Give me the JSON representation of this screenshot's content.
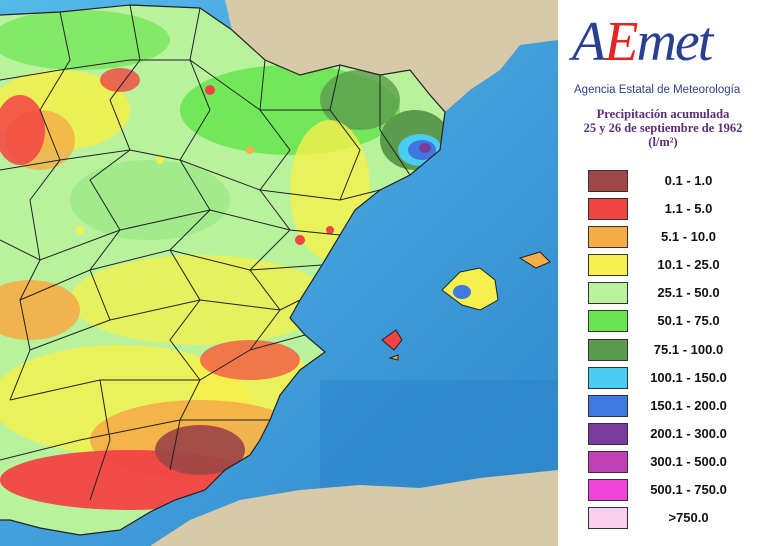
{
  "logo": {
    "name_parts": [
      "A",
      "E",
      "met"
    ],
    "agency": "Agencia Estatal de Meteorología"
  },
  "title": {
    "line1": "Precipitación acumulada",
    "line2": "25 y 26 de septiembre de 1962",
    "unit": "(l/m²)"
  },
  "colors": {
    "sea": "#3fa6df",
    "sea_deep": "#2f86c9",
    "land_foreign": "#d8c9a8"
  },
  "legend": [
    {
      "label": "0.1 - 1.0",
      "color": "#a04848"
    },
    {
      "label": "1.1 - 5.0",
      "color": "#f24343"
    },
    {
      "label": "5.1 - 10.0",
      "color": "#f5ad47"
    },
    {
      "label": "10.1 - 25.0",
      "color": "#f5f04b"
    },
    {
      "label": "25.1 - 50.0",
      "color": "#b8f29c"
    },
    {
      "label": "50.1 - 75.0",
      "color": "#6ce553"
    },
    {
      "label": "75.1 - 100.0",
      "color": "#5b9b4c"
    },
    {
      "label": "100.1 - 150.0",
      "color": "#49cdf2"
    },
    {
      "label": "150.1 - 200.0",
      "color": "#3f78e0"
    },
    {
      "label": "200.1 - 300.0",
      "color": "#7a3b9e"
    },
    {
      "label": "300.1 - 500.0",
      "color": "#c03fb3"
    },
    {
      "label": "500.1 - 750.0",
      "color": "#f244d8"
    },
    {
      "label": ">750.0",
      "color": "#fad1ec"
    }
  ]
}
